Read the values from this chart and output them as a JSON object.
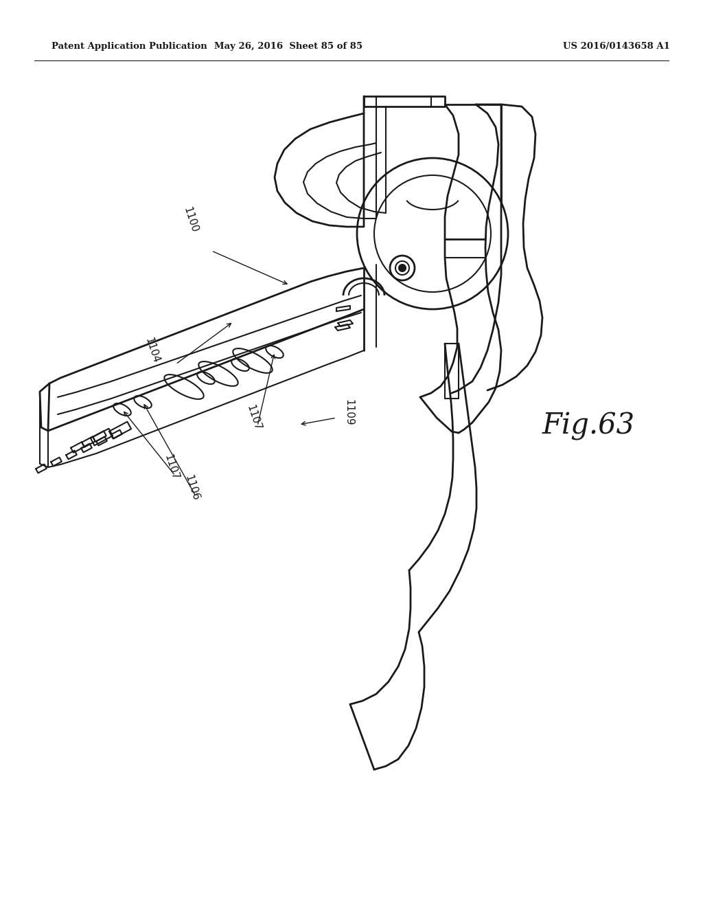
{
  "bg_color": "#ffffff",
  "line_color": "#1a1a1a",
  "header_left": "Patent Application Publication",
  "header_mid": "May 26, 2016  Sheet 85 of 85",
  "header_right": "US 2016/0143658 A1",
  "fig_label": "Fig.63",
  "figsize": [
    10.24,
    13.2
  ],
  "dpi": 100
}
